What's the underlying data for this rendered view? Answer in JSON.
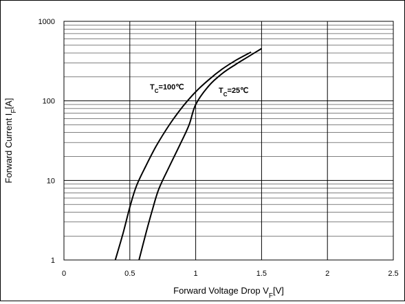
{
  "chart_data": {
    "type": "line",
    "title": "",
    "xlabel": "Forward Voltage Drop V",
    "xlabel_sub": "F",
    "xlabel_unit": "[V]",
    "ylabel": "Forward Current I",
    "ylabel_sub": "F",
    "ylabel_unit": "[A]",
    "xlim": [
      0,
      2.5
    ],
    "ylim": [
      1,
      1000
    ],
    "y_scale": "log",
    "grid": true,
    "x_ticks": [
      0,
      0.5,
      1,
      1.5,
      2,
      2.5
    ],
    "x_tick_labels": [
      "0",
      "0.5",
      "1",
      "1.5",
      "2",
      "2.5"
    ],
    "y_ticks": [
      1,
      10,
      100,
      1000
    ],
    "y_tick_labels": [
      "1",
      "10",
      "100",
      "1000"
    ],
    "series": [
      {
        "name": "TC=100℃",
        "label_main": "T",
        "label_sub": "C",
        "label_rest": "=100℃",
        "color": "#000000",
        "x": [
          0.39,
          0.45,
          0.5,
          0.55,
          0.62,
          0.7,
          0.8,
          0.9,
          1.0,
          1.1,
          1.2,
          1.3,
          1.42
        ],
        "y": [
          1,
          2.2,
          4.6,
          8.5,
          15,
          27,
          50,
          84,
          130,
          185,
          250,
          320,
          410
        ]
      },
      {
        "name": "TC=25℃",
        "label_main": "T",
        "label_sub": "C",
        "label_rest": "=25℃",
        "color": "#000000",
        "x": [
          0.57,
          0.62,
          0.67,
          0.72,
          0.8,
          0.88,
          0.95,
          1.0,
          1.1,
          1.2,
          1.3,
          1.4,
          1.5
        ],
        "y": [
          1,
          2.1,
          4.2,
          7.8,
          15,
          28,
          50,
          90,
          155,
          220,
          285,
          360,
          455
        ]
      }
    ]
  }
}
